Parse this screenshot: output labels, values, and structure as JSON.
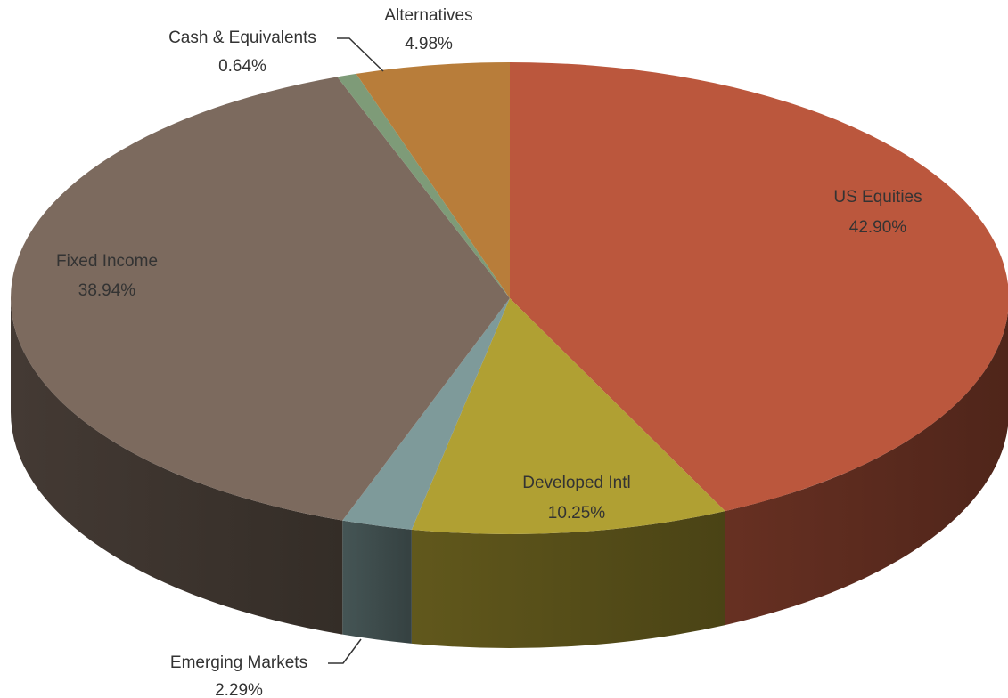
{
  "chart_data": {
    "type": "pie3d",
    "categories": [
      "US Equities",
      "Developed Intl",
      "Emerging Markets",
      "Fixed Income",
      "Cash & Equivalents",
      "Alternatives"
    ],
    "values": [
      42.9,
      10.25,
      2.29,
      38.94,
      0.64,
      4.98
    ],
    "value_labels": [
      "42.90%",
      "10.25%",
      "2.29%",
      "38.94%",
      "0.64%",
      "4.98%"
    ],
    "colors": [
      "#bb573d",
      "#b0a033",
      "#7e9a9a",
      "#7c6a5e",
      "#7e9b78",
      "#b87d3a"
    ]
  }
}
